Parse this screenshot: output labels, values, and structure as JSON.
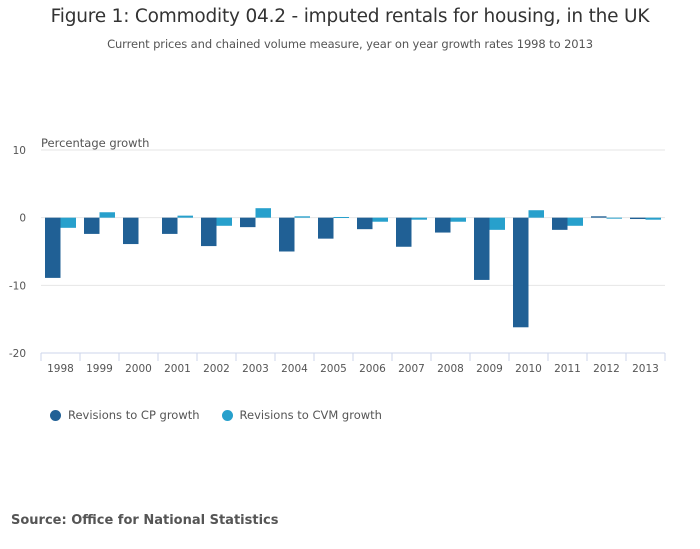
{
  "header": {
    "title": "Figure 1: Commodity 04.2 - imputed rentals for housing, in the UK",
    "subtitle": "Current prices and chained volume measure, year on year growth rates 1998 to 2013"
  },
  "footer": {
    "source": "Source: Office for National Statistics"
  },
  "chart_data": {
    "type": "bar",
    "title": "Figure 1: Commodity 04.2 - imputed rentals for housing, in the UK",
    "subtitle": "Current prices and chained volume measure, year on year growth rates 1998 to 2013",
    "xlabel": "",
    "ylabel": "Percentage growth",
    "ylim": [
      -20,
      10
    ],
    "yticks": [
      10,
      0,
      -10,
      -20
    ],
    "ytick_labels": [
      "10",
      "0",
      "-10",
      "-20"
    ],
    "grid": true,
    "legend_position": "bottom-left",
    "categories": [
      "1998",
      "1999",
      "2000",
      "2001",
      "2002",
      "2003",
      "2004",
      "2005",
      "2006",
      "2007",
      "2008",
      "2009",
      "2010",
      "2011",
      "2012",
      "2013"
    ],
    "series": [
      {
        "name": "Revisions to CP growth",
        "color": "#206095",
        "values": [
          -8.9,
          -2.4,
          -3.9,
          -2.4,
          -4.2,
          -1.4,
          -5.0,
          -3.1,
          -1.7,
          -4.3,
          -2.2,
          -9.2,
          -16.2,
          -1.8,
          0.2,
          -0.2
        ]
      },
      {
        "name": "Revisions to CVM growth",
        "color": "#27a0cc",
        "values": [
          -1.5,
          0.8,
          0.0,
          0.3,
          -1.2,
          1.4,
          0.2,
          0.1,
          -0.6,
          -0.3,
          -0.6,
          -1.8,
          1.1,
          -1.2,
          -0.1,
          -0.3
        ]
      }
    ]
  }
}
